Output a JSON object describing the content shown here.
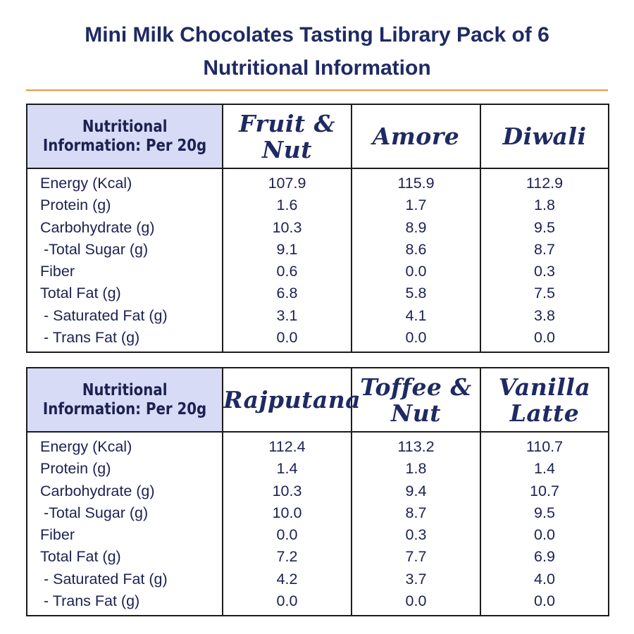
{
  "title_line1": "Mini Milk Chocolates Tasting Library Pack of 6",
  "title_line2": "Nutritional Information",
  "header_label_line1": "Nutritional",
  "header_label_line2": "Information: Per 20g",
  "nutrient_labels": [
    "Energy (Kcal)",
    "Protein (g)",
    "Carbohydrate (g)",
    " -Total Sugar (g)",
    "Fiber",
    "Total Fat (g)",
    " - Saturated Fat (g)",
    " - Trans Fat (g)"
  ],
  "tables": [
    {
      "flavors": [
        {
          "line1": "Fruit &",
          "line2": "Nut",
          "values": [
            "107.9",
            "1.6",
            "10.3",
            "9.1",
            "0.6",
            "6.8",
            "3.1",
            "0.0"
          ]
        },
        {
          "line1": "Amore",
          "line2": "",
          "values": [
            "115.9",
            "1.7",
            "8.9",
            "8.6",
            "0.0",
            "5.8",
            "4.1",
            "0.0"
          ]
        },
        {
          "line1": "Diwali",
          "line2": "",
          "values": [
            "112.9",
            "1.8",
            "9.5",
            "8.7",
            "0.3",
            "7.5",
            "3.8",
            "0.0"
          ]
        }
      ]
    },
    {
      "flavors": [
        {
          "line1": "Rajputana",
          "line2": "",
          "values": [
            "112.4",
            "1.4",
            "10.3",
            "10.0",
            "0.0",
            "7.2",
            "4.2",
            "0.0"
          ]
        },
        {
          "line1": "Toffee &",
          "line2": "Nut",
          "values": [
            "113.2",
            "1.8",
            "9.4",
            "8.7",
            "0.3",
            "7.7",
            "3.7",
            "0.0"
          ]
        },
        {
          "line1": "Vanilla",
          "line2": "Latte",
          "values": [
            "110.7",
            "1.4",
            "10.7",
            "9.5",
            "0.0",
            "6.9",
            "4.0",
            "0.0"
          ]
        }
      ]
    }
  ],
  "colors": {
    "title": "#1f2a63",
    "accent_rule": "#e9953f",
    "header_cell_bg": "#d7dbf5",
    "text": "#1c2152"
  }
}
